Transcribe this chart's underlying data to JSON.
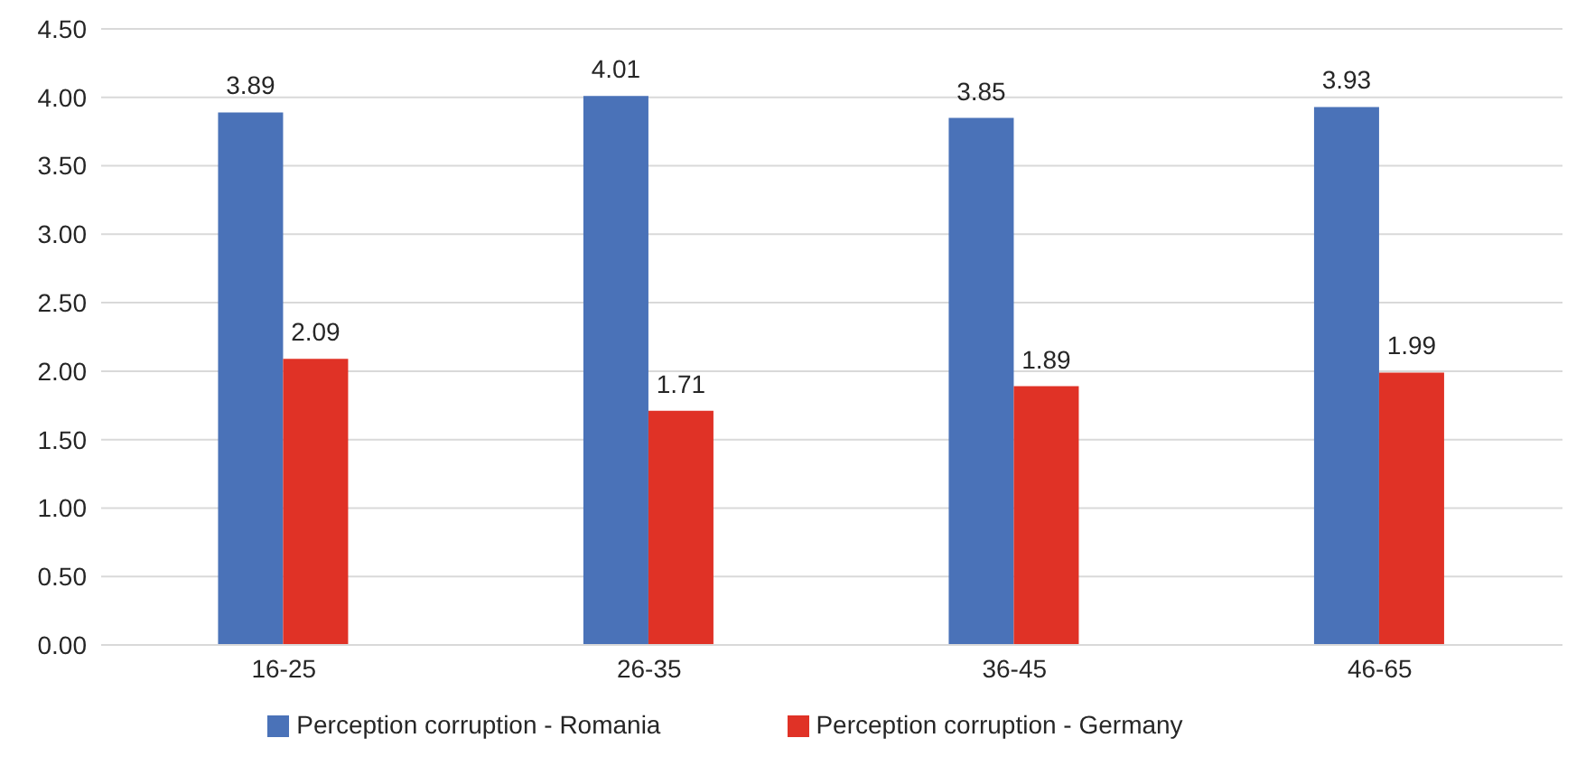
{
  "chart_data": {
    "type": "bar",
    "categories": [
      "16-25",
      "26-35",
      "36-45",
      "46-65"
    ],
    "series": [
      {
        "name": "Perception corruption - Romania",
        "color": "#4a72b8",
        "values": [
          3.89,
          4.01,
          3.85,
          3.93
        ]
      },
      {
        "name": "Perception corruption - Germany",
        "color": "#e03226",
        "values": [
          2.09,
          1.71,
          1.89,
          1.99
        ]
      }
    ],
    "ylim": [
      0,
      4.5
    ],
    "yticks": [
      {
        "value": 0,
        "label": "0.00"
      },
      {
        "value": 0.5,
        "label": "0.50"
      },
      {
        "value": 1,
        "label": "1.00"
      },
      {
        "value": 1.5,
        "label": "1.50"
      },
      {
        "value": 2,
        "label": "2.00"
      },
      {
        "value": 2.5,
        "label": "2.50"
      },
      {
        "value": 3,
        "label": "3.00"
      },
      {
        "value": 3.5,
        "label": "3.50"
      },
      {
        "value": 4,
        "label": "4.00"
      },
      {
        "value": 4.5,
        "label": "4.50"
      }
    ],
    "grid": "y",
    "legend": "bottom",
    "data_labels": true
  }
}
